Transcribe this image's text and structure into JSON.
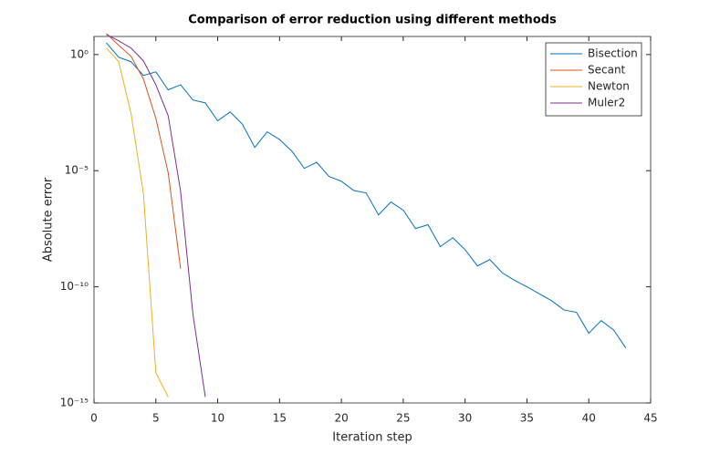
{
  "chart_data": {
    "type": "line",
    "title": "Comparison of error reduction using different methods",
    "x_label": "Iteration step",
    "y_label": "Absolute error",
    "xlim": [
      0,
      45
    ],
    "xticks": [
      0,
      5,
      10,
      15,
      20,
      25,
      30,
      35,
      40,
      45
    ],
    "ylim": [
      1e-15,
      6
    ],
    "log_y": true,
    "yticks": [
      {
        "value": 1e-15,
        "label": "10⁻¹⁵"
      },
      {
        "value": 1e-10,
        "label": "10⁻¹⁰"
      },
      {
        "value": 1e-05,
        "label": "10⁻⁵"
      },
      {
        "value": 1,
        "label": "10⁰"
      }
    ],
    "legend": "top-right",
    "series": [
      {
        "name": "Bisection",
        "color": "#0072BD",
        "x": [
          1,
          2,
          3,
          4,
          5,
          6,
          7,
          8,
          9,
          10,
          11,
          12,
          13,
          14,
          15,
          16,
          17,
          18,
          19,
          20,
          21,
          22,
          23,
          24,
          25,
          26,
          27,
          28,
          29,
          30,
          31,
          32,
          33,
          34,
          35,
          36,
          37,
          38,
          39,
          40,
          41,
          42,
          43
        ],
        "values": [
          3.2,
          0.76,
          0.49,
          0.125,
          0.18,
          0.03,
          0.05,
          0.011,
          0.0083,
          0.0014,
          0.0034,
          0.001,
          0.0001,
          0.00047,
          0.00022,
          6.9e-05,
          1.26e-05,
          2.3e-05,
          5.6e-06,
          3.5e-06,
          1.4e-06,
          1.1e-06,
          1.26e-07,
          4.5e-07,
          2e-07,
          3.2e-08,
          4.7e-08,
          5.4e-09,
          1.3e-08,
          4e-09,
          7.9e-10,
          1.5e-09,
          4e-10,
          1.9e-10,
          1e-10,
          5e-11,
          2.5e-11,
          1e-11,
          8e-12,
          1e-12,
          3.5e-12,
          1.4e-12,
          2.3e-13
        ]
      },
      {
        "name": "Secant",
        "color": "#D95319",
        "x": [
          1,
          2,
          3,
          4,
          5,
          6,
          7
        ],
        "values": [
          8,
          2.5,
          0.83,
          0.087,
          0.0018,
          8e-06,
          6e-10
        ]
      },
      {
        "name": "Newton",
        "color": "#EDB120",
        "x": [
          1,
          2,
          3,
          4,
          5,
          6
        ],
        "values": [
          1.9,
          0.49,
          0.0028,
          1e-06,
          2e-14,
          1.8e-15
        ]
      },
      {
        "name": "Muler2",
        "color": "#7E2F8E",
        "x": [
          1,
          2,
          3,
          4,
          5,
          6,
          7,
          8,
          9
        ],
        "values": [
          7.3,
          3.9,
          1.9,
          0.53,
          0.05,
          0.0023,
          1.3e-06,
          6.5e-12,
          1.8e-15
        ]
      }
    ]
  }
}
